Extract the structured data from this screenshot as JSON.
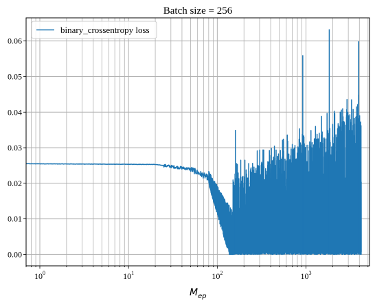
{
  "chart_data": {
    "type": "line",
    "title": "Batch size = 256",
    "xlabel_main": "M",
    "xlabel_sub": "ep",
    "ylabel": "",
    "xscale": "log",
    "xlim": [
      0.7,
      5200
    ],
    "ylim": [
      -0.0032,
      0.0665
    ],
    "xticks": [
      {
        "value": 1,
        "base": "10",
        "exp": "0"
      },
      {
        "value": 10,
        "base": "10",
        "exp": "1"
      },
      {
        "value": 100,
        "base": "10",
        "exp": "2"
      },
      {
        "value": 1000,
        "base": "10",
        "exp": "3"
      }
    ],
    "yticks": [
      {
        "value": 0.0,
        "label": "0.00"
      },
      {
        "value": 0.01,
        "label": "0.01"
      },
      {
        "value": 0.02,
        "label": "0.02"
      },
      {
        "value": 0.03,
        "label": "0.03"
      },
      {
        "value": 0.04,
        "label": "0.04"
      },
      {
        "value": 0.05,
        "label": "0.05"
      },
      {
        "value": 0.06,
        "label": "0.06"
      }
    ],
    "grid": "major and minor",
    "legend": "top-left",
    "series": [
      {
        "name": "binary_crossentropy loss",
        "color": "#1f77b4",
        "x_range": [
          0.7,
          4200
        ],
        "notable_values": [
          {
            "x": 1,
            "y": 0.0255
          },
          {
            "x": 20,
            "y": 0.0253
          },
          {
            "x": 30,
            "y": 0.0252
          },
          {
            "x": 50,
            "y": 0.024
          },
          {
            "x": 70,
            "y": 0.0215
          },
          {
            "x": 100,
            "y": 0.011
          },
          {
            "x": 160,
            "y": 0.035
          },
          {
            "x": 920,
            "y": 0.056
          },
          {
            "x": 1830,
            "y": 0.0633
          },
          {
            "x": 3900,
            "y": 0.0599
          }
        ]
      }
    ]
  }
}
